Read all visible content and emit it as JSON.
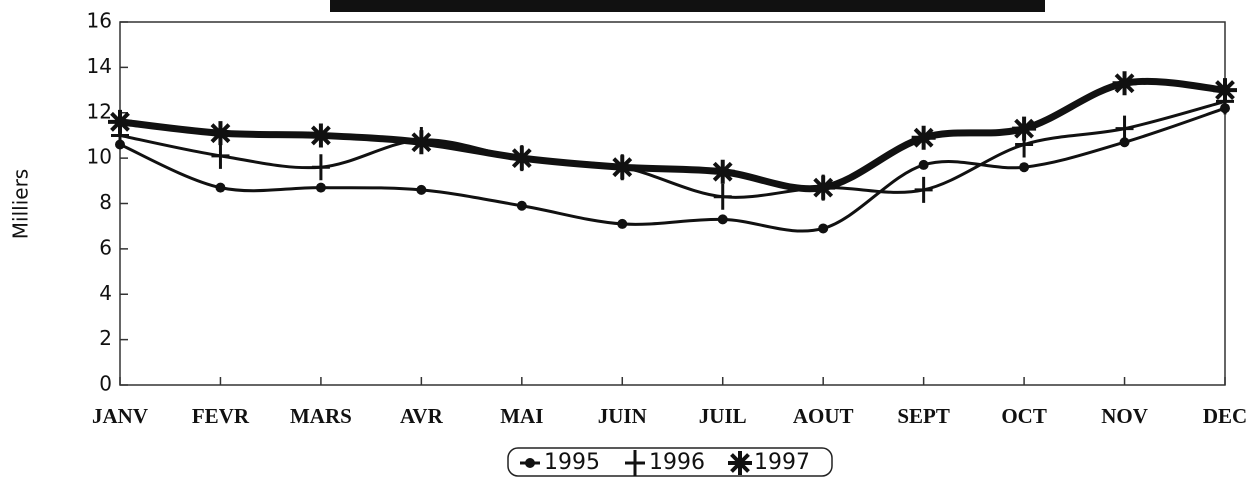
{
  "chart_data": {
    "type": "line",
    "y_label": "Milliers",
    "categories": [
      "JANV",
      "FEVR",
      "MARS",
      "AVR",
      "MAI",
      "JUIN",
      "JUIL",
      "AOUT",
      "SEPT",
      "OCT",
      "NOV",
      "DEC"
    ],
    "series": [
      {
        "name": "1995",
        "color": "#111111",
        "marker": "circle",
        "line_width": 3,
        "values": [
          10.6,
          8.7,
          8.7,
          8.6,
          7.9,
          7.1,
          7.3,
          6.9,
          9.7,
          9.6,
          10.7,
          12.2
        ]
      },
      {
        "name": "1996",
        "color": "#111111",
        "marker": "plus",
        "line_width": 3,
        "values": [
          11.0,
          10.1,
          9.6,
          10.8,
          10.0,
          9.6,
          8.3,
          8.7,
          8.6,
          10.6,
          11.3,
          12.5
        ]
      },
      {
        "name": "1997",
        "color": "#111111",
        "marker": "star",
        "line_width": 7,
        "values": [
          11.6,
          11.1,
          11.0,
          10.7,
          10.0,
          9.6,
          9.4,
          8.7,
          10.9,
          11.3,
          13.3,
          13.0
        ]
      }
    ],
    "ylim": [
      0,
      16
    ],
    "yticks": [
      0,
      2,
      4,
      6,
      8,
      10,
      12,
      14,
      16
    ]
  }
}
